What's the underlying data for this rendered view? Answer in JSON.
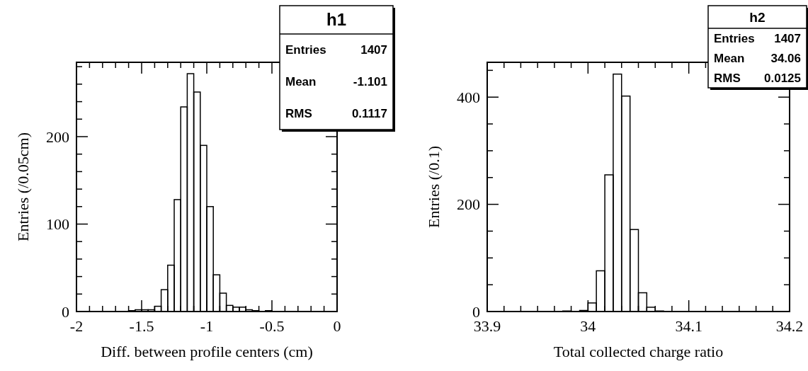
{
  "chart_data": [
    {
      "type": "histogram",
      "xlabel": "Diff. between profile centers (cm)",
      "ylabel": "Entries (/0.05cm)",
      "color": "#000000",
      "bins": [
        -1.6,
        -1.55,
        -1.5,
        -1.45,
        -1.4,
        -1.35,
        -1.3,
        -1.25,
        -1.2,
        -1.15,
        -1.1,
        -1.05,
        -1.0,
        -0.95,
        -0.9,
        -0.85,
        -0.8,
        -0.75,
        -0.7,
        -0.65,
        -0.6,
        -0.55,
        -0.5
      ],
      "values": [
        1,
        2,
        2,
        2,
        6,
        25,
        53,
        128,
        234,
        272,
        251,
        190,
        120,
        42,
        21,
        7,
        5,
        5,
        2,
        1,
        0,
        1
      ],
      "xlim": [
        -2,
        0
      ],
      "ylim": [
        0,
        285
      ],
      "xticks": [
        -2,
        {
          "value": -1.9,
          "label": null
        },
        {
          "value": -1.8,
          "label": null
        },
        {
          "value": -1.7,
          "label": null
        },
        {
          "value": -1.6,
          "label": null
        },
        -1.5,
        {
          "value": -1.4,
          "label": null
        },
        {
          "value": -1.3,
          "label": null
        },
        {
          "value": -1.2,
          "label": null
        },
        {
          "value": -1.1,
          "label": null
        },
        -1,
        {
          "value": -0.9,
          "label": null
        },
        {
          "value": -0.8,
          "label": null
        },
        {
          "value": -0.7,
          "label": null
        },
        {
          "value": -0.6,
          "label": null
        },
        -0.5,
        {
          "value": -0.4,
          "label": null
        },
        {
          "value": -0.3,
          "label": null
        },
        {
          "value": -0.2,
          "label": null
        },
        {
          "value": -0.1,
          "label": null
        },
        0
      ],
      "yticks": [
        0,
        {
          "value": 20,
          "label": null
        },
        {
          "value": 40,
          "label": null
        },
        {
          "value": 60,
          "label": null
        },
        {
          "value": 80,
          "label": null
        },
        100,
        {
          "value": 120,
          "label": null
        },
        {
          "value": 140,
          "label": null
        },
        {
          "value": 160,
          "label": null
        },
        {
          "value": 180,
          "label": null
        },
        200,
        {
          "value": 220,
          "label": null
        },
        {
          "value": 240,
          "label": null
        },
        {
          "value": 260,
          "label": null
        },
        {
          "value": 280,
          "label": null
        }
      ],
      "annotations": [
        "h1",
        "Entries",
        "1407",
        "Mean",
        "-1.101",
        "RMS",
        "0.1117"
      ]
    },
    {
      "type": "histogram",
      "xlabel": "Total collected charge ratio",
      "ylabel": "Entries (/0.1)",
      "color": "#000000",
      "bins": [
        33.975,
        33.9833,
        33.9917,
        34.0,
        34.0083,
        34.0167,
        34.025,
        34.0333,
        34.0417,
        34.05,
        34.0583,
        34.0667,
        34.075,
        34.0833
      ],
      "values": [
        1,
        0,
        2,
        16,
        76,
        255,
        443,
        402,
        153,
        35,
        8,
        1,
        0
      ],
      "xlim": [
        33.9,
        34.2
      ],
      "ylim": [
        0,
        465
      ],
      "xticks": [
        33.9,
        {
          "value": 33.9167,
          "label": null
        },
        {
          "value": 33.9333,
          "label": null
        },
        {
          "value": 33.95,
          "label": null
        },
        {
          "value": 33.9667,
          "label": null
        },
        {
          "value": 33.9833,
          "label": null
        },
        34,
        {
          "value": 34.0167,
          "label": null
        },
        {
          "value": 34.0333,
          "label": null
        },
        {
          "value": 34.05,
          "label": null
        },
        {
          "value": 34.0667,
          "label": null
        },
        {
          "value": 34.0833,
          "label": null
        },
        34.1,
        {
          "value": 34.1167,
          "label": null
        },
        {
          "value": 34.1333,
          "label": null
        },
        {
          "value": 34.15,
          "label": null
        },
        {
          "value": 34.1667,
          "label": null
        },
        {
          "value": 34.1833,
          "label": null
        },
        34.2
      ],
      "yticks": [
        0,
        {
          "value": 50,
          "label": null
        },
        {
          "value": 100,
          "label": null
        },
        {
          "value": 150,
          "label": null
        },
        200,
        {
          "value": 250,
          "label": null
        },
        {
          "value": 300,
          "label": null
        },
        {
          "value": 350,
          "label": null
        },
        400,
        {
          "value": 450,
          "label": null
        }
      ],
      "annotations": [
        "h2",
        "Entries",
        "1407",
        "Mean",
        "34.06",
        "RMS",
        "0.0125"
      ]
    }
  ]
}
